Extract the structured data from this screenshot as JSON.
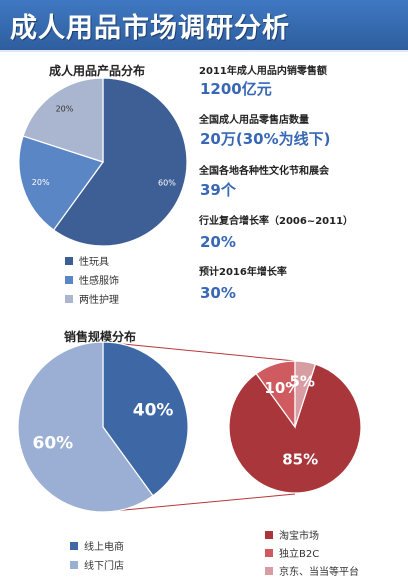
{
  "header": {
    "title": "成人用品市场调研分析"
  },
  "stats": [
    {
      "label": "2011年成人用品内销零售额",
      "value": "1200亿元"
    },
    {
      "label": "全国成人用品零售店数量",
      "value": "20万(30%为线下)"
    },
    {
      "label": "全国各地各种性文化节和展会",
      "value": "39个"
    },
    {
      "label": "行业复合增长率（2006~2011）",
      "value": "20%"
    },
    {
      "label": "预计2016年增长率",
      "value": "30%"
    }
  ],
  "chart_data": [
    {
      "type": "pie",
      "title": "成人用品产品分布",
      "categories": [
        "性玩具",
        "性感服饰",
        "两性护理"
      ],
      "values": [
        60,
        20,
        20
      ],
      "value_labels": [
        "60%",
        "20%",
        "20%"
      ],
      "colors": [
        "#3e5f95",
        "#5b86c6",
        "#aab6cf"
      ],
      "legend_position": "bottom-left"
    },
    {
      "type": "pie",
      "title": "销售规模分布",
      "categories": [
        "线上电商",
        "线下门店"
      ],
      "values": [
        40,
        60
      ],
      "value_labels": [
        "40%",
        "60%"
      ],
      "colors": [
        "#3e67a5",
        "#9aafd3"
      ],
      "legend_position": "bottom-left"
    },
    {
      "type": "pie",
      "title": "",
      "categories": [
        "淘宝市场",
        "独立B2C",
        "京东、当当等平台"
      ],
      "values": [
        85,
        10,
        5
      ],
      "value_labels": [
        "85%",
        "10%",
        "5%"
      ],
      "colors": [
        "#a8363b",
        "#cf5a5f",
        "#d79da3"
      ],
      "legend_position": "bottom-right"
    }
  ]
}
